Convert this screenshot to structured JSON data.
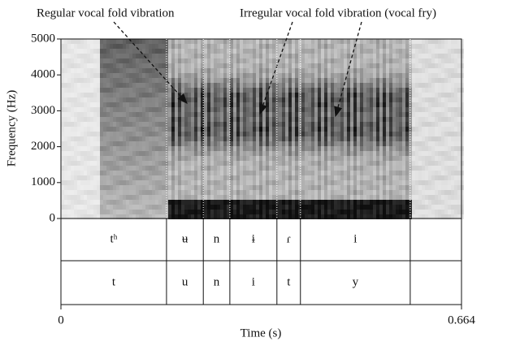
{
  "chart_data": {
    "type": "spectrogram",
    "annotations": [
      "Regular vocal fold vibration",
      "Irregular vocal fold vibration (vocal fry)"
    ],
    "y_label": "Frequency (Hz)",
    "x_label": "Time (s)",
    "ylim": [
      0,
      5000
    ],
    "yticks": [
      0,
      1000,
      2000,
      3000,
      4000,
      5000
    ],
    "xlim": [
      0,
      0.664
    ],
    "xticks": [
      0,
      0.664
    ],
    "boundaries": [
      0.175,
      0.236,
      0.28,
      0.358,
      0.397,
      0.579
    ],
    "tiers": [
      {
        "labels": [
          "tʰ",
          "ʉ",
          "n",
          "ɨ",
          "ɾ",
          "i",
          null
        ]
      },
      {
        "labels": [
          "t",
          "u",
          "n",
          "i",
          "t",
          "y",
          null
        ]
      }
    ]
  }
}
